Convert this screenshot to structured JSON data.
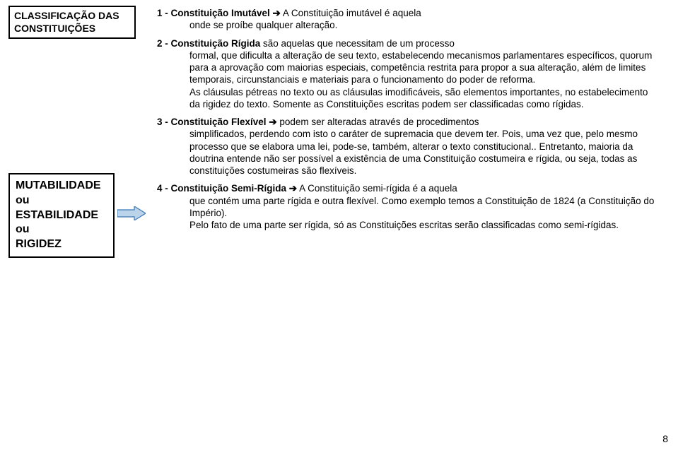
{
  "header": {
    "line1": "CLASSIFICAÇÃO DAS",
    "line2": "CONSTITUIÇÕES"
  },
  "sidebox": {
    "line1": "MUTABILIDADE",
    "line2": "ou",
    "line3": "ESTABILIDADE",
    "line4": "ou",
    "line5": "RIGIDEZ"
  },
  "arrow_glyph": "➔",
  "item1": {
    "lead": "1 - Constituição Imutável",
    "rest_first": " A Constituição imutável é aquela",
    "cont": "onde se proíbe qualquer alteração."
  },
  "item2": {
    "lead": "2 - Constituição Rígida",
    "rest_first": " são aquelas que necessitam de um processo",
    "cont": "formal, que dificulta a alteração de seu texto, estabelecendo mecanismos parlamentares específicos, quorum para a aprovação com maiorias especiais, competência restrita para propor a sua alteração, além de limites temporais, circunstanciais e materiais para o funcionamento do poder de reforma.\nAs cláusulas pétreas no texto ou as cláusulas  imodificáveis, são elementos importantes, no estabelecimento da rigidez do texto. Somente as Constituições escritas podem ser classificadas como rígidas."
  },
  "item3": {
    "lead": "3 - Constituição Flexível",
    "rest_first": " podem ser alteradas através de procedimentos",
    "cont": "simplificados, perdendo com isto o caráter de supremacia que devem ter. Pois,  uma vez que, pelo mesmo processo que se elabora uma lei, pode-se, também, alterar o texto constitucional.. Entretanto,  maioria da doutrina entende não ser possível a existência de uma Constituição costumeira e rígida, ou seja, todas as constituições costumeiras são flexíveis."
  },
  "item4": {
    "lead": "4 - Constituição Semi-Rígida",
    "rest_first": " A Constituição semi-rígida é a aquela",
    "cont": "que contém uma parte rígida e outra flexível. Como exemplo temos a Constituição de 1824 (a Constituição do Império).\nPelo fato de uma parte ser rígida, só as Constituições escritas serão classificadas como semi-rígidas."
  },
  "page_number": "8",
  "colors": {
    "arrow_stroke": "#3b78b5",
    "arrow_fill": "#bcd4ea",
    "text": "#000000",
    "bg": "#ffffff"
  }
}
